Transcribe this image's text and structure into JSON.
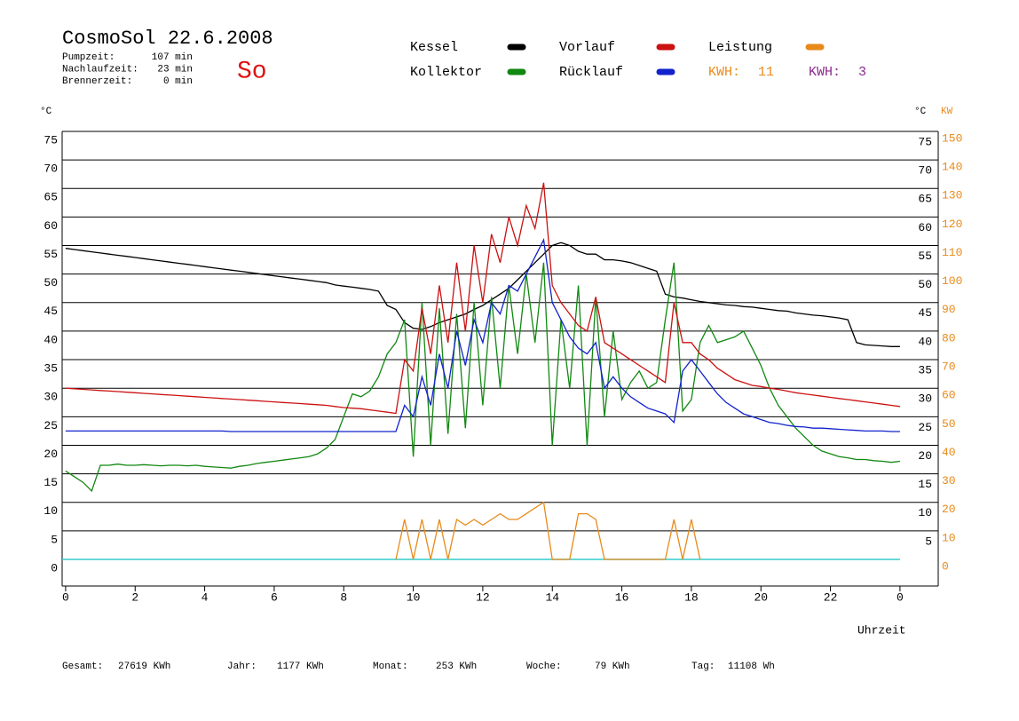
{
  "chart_data": {
    "type": "line",
    "title": "CosmoSol 22.6.2008",
    "day": "So",
    "info": [
      {
        "label": "Pumpzeit:",
        "value": "107 min"
      },
      {
        "label": "Nachlaufzeit:",
        "value": "23 min"
      },
      {
        "label": "Brennerzeit:",
        "value": "0 min"
      }
    ],
    "kwh": [
      {
        "label": "KWH:",
        "value": 11,
        "color": "#e88a1a"
      },
      {
        "label": "KWH:",
        "value": 3,
        "color": "#8b2a8b"
      }
    ],
    "ylabel": "°C",
    "y2label": "KW",
    "xlabel": "Uhrzeit",
    "footer": [
      {
        "label": "Gesamt:",
        "value": "27619 KWh"
      },
      {
        "label": "Jahr:",
        "value": "1177 KWh"
      },
      {
        "label": "Monat:",
        "value": "253 KWh"
      },
      {
        "label": "Woche:",
        "value": "79 KWh"
      },
      {
        "label": "Tag:",
        "value": "11108 Wh"
      }
    ],
    "xlim": [
      -0.1,
      25.1
    ],
    "xticks": [
      0,
      2,
      4,
      6,
      8,
      10,
      12,
      14,
      16,
      18,
      20,
      22,
      {
        "value": 24,
        "label": "0"
      }
    ],
    "ylim": [
      -4.67,
      75
    ],
    "yticks": [
      0,
      5,
      10,
      15,
      20,
      25,
      30,
      35,
      40,
      45,
      50,
      55,
      60,
      65,
      70,
      75
    ],
    "y2lim": [
      -9.34,
      150
    ],
    "y2ticks": [
      0,
      10,
      20,
      30,
      40,
      50,
      60,
      70,
      80,
      90,
      100,
      110,
      120,
      130,
      140,
      150
    ],
    "grid": true,
    "x": [
      0,
      0.25,
      0.5,
      0.75,
      1,
      1.25,
      1.5,
      1.75,
      2,
      2.25,
      2.5,
      2.75,
      3,
      3.25,
      3.5,
      3.75,
      4,
      4.25,
      4.5,
      4.75,
      5,
      5.25,
      5.5,
      5.75,
      6,
      6.25,
      6.5,
      6.75,
      7,
      7.25,
      7.5,
      7.75,
      8,
      8.25,
      8.5,
      8.75,
      9,
      9.25,
      9.5,
      9.75,
      10,
      10.25,
      10.5,
      10.75,
      11,
      11.25,
      11.5,
      11.75,
      12,
      12.25,
      12.5,
      12.75,
      13,
      13.25,
      13.5,
      13.75,
      14,
      14.25,
      14.5,
      14.75,
      15,
      15.25,
      15.5,
      15.75,
      16,
      16.25,
      16.5,
      16.75,
      17,
      17.25,
      17.5,
      17.75,
      18,
      18.25,
      18.5,
      18.75,
      19,
      19.25,
      19.5,
      19.75,
      20,
      20.25,
      20.5,
      20.75,
      21,
      21.25,
      21.5,
      21.75,
      22,
      22.25,
      22.5,
      22.75,
      23,
      23.25,
      23.5,
      23.75,
      24
    ],
    "series": [
      {
        "name": "Kessel",
        "color": "#000000",
        "values": [
          54.5,
          54.3,
          54.1,
          53.9,
          53.7,
          53.5,
          53.3,
          53.1,
          52.9,
          52.7,
          52.5,
          52.3,
          52.1,
          51.9,
          51.7,
          51.5,
          51.3,
          51.1,
          50.9,
          50.7,
          50.5,
          50.3,
          50.1,
          49.9,
          49.7,
          49.5,
          49.3,
          49.1,
          48.9,
          48.7,
          48.5,
          48.1,
          47.9,
          47.7,
          47.5,
          47.3,
          47.0,
          44.5,
          43.8,
          41.5,
          40.5,
          40.3,
          40.8,
          41.5,
          42,
          42.5,
          43,
          43.8,
          44.5,
          45.5,
          46.5,
          47.5,
          49,
          50.5,
          52,
          53.5,
          55,
          55.5,
          55,
          54,
          53.5,
          53.5,
          52.5,
          52.5,
          52.3,
          52,
          51.5,
          51,
          50.5,
          46.5,
          46,
          45.8,
          45.5,
          45.2,
          45,
          44.8,
          44.6,
          44.5,
          44.3,
          44.2,
          44,
          43.8,
          43.6,
          43.5,
          43.2,
          43,
          42.8,
          42.7,
          42.5,
          42.3,
          42,
          38,
          37.6,
          37.5,
          37.4,
          37.3,
          37.3
        ]
      },
      {
        "name": "Kollektor",
        "color": "#118811",
        "values": [
          15.5,
          14.5,
          13.5,
          12,
          16.5,
          16.5,
          16.7,
          16.5,
          16.5,
          16.6,
          16.5,
          16.4,
          16.5,
          16.5,
          16.4,
          16.5,
          16.3,
          16.2,
          16.1,
          16,
          16.3,
          16.5,
          16.8,
          17,
          17.2,
          17.4,
          17.6,
          17.8,
          18,
          18.5,
          19.5,
          21,
          25,
          29,
          28.5,
          29.5,
          32,
          36,
          38,
          42,
          18,
          45,
          20,
          44,
          22,
          43,
          23,
          45,
          27,
          46,
          30,
          48,
          36,
          50,
          38,
          52,
          20,
          42,
          30,
          48,
          20,
          46,
          25,
          40,
          28,
          31,
          33,
          30,
          31,
          42,
          52,
          26,
          28,
          38,
          41,
          38,
          38.5,
          39,
          40,
          37,
          34,
          30,
          27,
          25,
          23,
          21.5,
          20,
          19,
          18.5,
          18,
          17.8,
          17.5,
          17.5,
          17.3,
          17.2,
          17,
          17.2
        ]
      },
      {
        "name": "Vorlauf",
        "color": "#cc1111",
        "values": [
          30,
          29.9,
          29.8,
          29.7,
          29.6,
          29.5,
          29.4,
          29.3,
          29.2,
          29.1,
          29,
          28.9,
          28.8,
          28.7,
          28.6,
          28.5,
          28.4,
          28.3,
          28.2,
          28.1,
          28,
          27.9,
          27.8,
          27.7,
          27.6,
          27.5,
          27.4,
          27.3,
          27.2,
          27.1,
          27,
          26.8,
          26.6,
          26.5,
          26.4,
          26.2,
          26,
          25.8,
          25.6,
          35,
          33,
          44,
          36,
          48,
          38,
          52,
          40,
          55,
          45,
          57,
          52,
          60,
          55,
          62,
          58,
          66,
          48,
          45,
          43,
          41,
          40,
          46,
          38,
          37,
          36,
          35,
          34,
          33,
          32,
          31,
          45,
          38,
          38,
          36,
          35,
          33.5,
          32.5,
          31.5,
          31,
          30.5,
          30.3,
          30,
          29.8,
          29.5,
          29.2,
          29,
          28.8,
          28.6,
          28.4,
          28.2,
          28,
          27.8,
          27.6,
          27.4,
          27.2,
          27,
          26.8
        ]
      },
      {
        "name": "Rücklauf",
        "color": "#1122cc",
        "values": [
          22.5,
          22.5,
          22.5,
          22.5,
          22.5,
          22.5,
          22.5,
          22.5,
          22.5,
          22.5,
          22.5,
          22.5,
          22.5,
          22.5,
          22.5,
          22.5,
          22.5,
          22.5,
          22.5,
          22.4,
          22.4,
          22.4,
          22.4,
          22.4,
          22.4,
          22.4,
          22.4,
          22.4,
          22.4,
          22.4,
          22.4,
          22.4,
          22.4,
          22.4,
          22.4,
          22.4,
          22.4,
          22.4,
          22.4,
          27,
          25,
          32,
          27,
          36,
          30,
          40,
          34,
          42,
          38,
          45,
          43,
          48,
          47,
          50,
          53,
          56,
          45,
          42,
          39,
          37,
          36,
          38,
          30,
          32,
          30,
          28.5,
          27.5,
          26.5,
          26,
          25.5,
          24,
          33,
          35,
          33,
          31,
          29,
          27.5,
          26.5,
          25.5,
          25,
          24.5,
          24,
          23.8,
          23.5,
          23.3,
          23.2,
          23,
          23,
          22.9,
          22.8,
          22.7,
          22.6,
          22.5,
          22.5,
          22.5,
          22.4,
          22.4
        ]
      },
      {
        "name": "Leistung",
        "color": "#e88a1a",
        "axis": "y2",
        "values": [
          null,
          null,
          null,
          null,
          null,
          null,
          null,
          null,
          null,
          null,
          null,
          null,
          null,
          null,
          null,
          null,
          null,
          null,
          null,
          null,
          null,
          null,
          null,
          null,
          null,
          null,
          null,
          null,
          null,
          null,
          null,
          null,
          null,
          null,
          null,
          null,
          null,
          null,
          0,
          14,
          0,
          14,
          0,
          14,
          0,
          14,
          12,
          14,
          12,
          14,
          16,
          14,
          14,
          16,
          18,
          20,
          0,
          0,
          0,
          16,
          16,
          14,
          0,
          0,
          0,
          0,
          0,
          0,
          0,
          0,
          14,
          0,
          14,
          0,
          null,
          null,
          null,
          null,
          null,
          null,
          null,
          null,
          null,
          null,
          null,
          null,
          null,
          null,
          null,
          null,
          null,
          null,
          null,
          null,
          null,
          null,
          null
        ]
      }
    ]
  }
}
